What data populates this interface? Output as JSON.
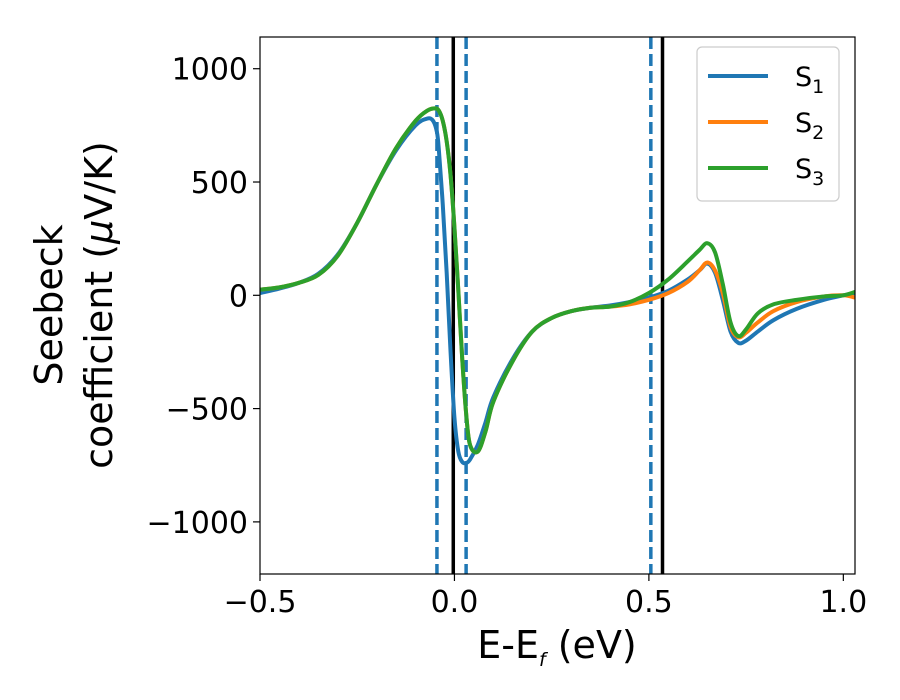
{
  "chart_data": {
    "type": "line",
    "title": "",
    "xlabel": {
      "prefix": "E-E",
      "sub": "f",
      "suffix": " (eV)"
    },
    "ylabel": {
      "line1": "Seebeck",
      "line2": "coefficient  (",
      "mu": "μ",
      "line2_suffix": "V/K)"
    },
    "xlim": [
      -0.5,
      1.03
    ],
    "ylim": [
      -1230,
      1140
    ],
    "xticks": [
      {
        "value": -0.5,
        "label": "−0.5"
      },
      {
        "value": 0.0,
        "label": "0.0"
      },
      {
        "value": 0.5,
        "label": "0.5"
      },
      {
        "value": 1.0,
        "label": "1.0"
      }
    ],
    "yticks": [
      {
        "value": 1000,
        "label": "1000"
      },
      {
        "value": 500,
        "label": "500"
      },
      {
        "value": 0,
        "label": "0"
      },
      {
        "value": -500,
        "label": "−500"
      },
      {
        "value": -1000,
        "label": "−1000"
      }
    ],
    "grid": false,
    "legend_position": "top-right",
    "series": [
      {
        "name": "S1",
        "base": "S",
        "sub": "1",
        "color": "#1f77b4",
        "x": [
          -0.5,
          -0.45,
          -0.4,
          -0.35,
          -0.3,
          -0.25,
          -0.2,
          -0.15,
          -0.1,
          -0.07,
          -0.055,
          -0.045,
          -0.04,
          -0.03,
          -0.02,
          -0.01,
          0.0,
          0.01,
          0.02,
          0.03,
          0.04,
          0.06,
          0.08,
          0.1,
          0.15,
          0.2,
          0.25,
          0.3,
          0.35,
          0.4,
          0.45,
          0.5,
          0.55,
          0.6,
          0.63,
          0.65,
          0.67,
          0.69,
          0.71,
          0.73,
          0.75,
          0.78,
          0.82,
          0.88,
          0.95,
          1.0,
          1.03
        ],
        "y": [
          10,
          30,
          55,
          95,
          180,
          320,
          490,
          640,
          750,
          780,
          770,
          720,
          640,
          400,
          100,
          -250,
          -540,
          -690,
          -735,
          -740,
          -725,
          -660,
          -560,
          -450,
          -280,
          -160,
          -100,
          -70,
          -55,
          -45,
          -30,
          -10,
          20,
          70,
          110,
          140,
          100,
          -20,
          -160,
          -210,
          -200,
          -160,
          -110,
          -60,
          -20,
          0,
          10
        ]
      },
      {
        "name": "S2",
        "base": "S",
        "sub": "2",
        "color": "#ff7f0e",
        "x": [
          -0.5,
          -0.45,
          -0.4,
          -0.35,
          -0.3,
          -0.25,
          -0.2,
          -0.15,
          -0.1,
          -0.07,
          -0.05,
          -0.04,
          -0.03,
          -0.02,
          -0.01,
          0.0,
          0.01,
          0.02,
          0.03,
          0.04,
          0.06,
          0.08,
          0.1,
          0.15,
          0.2,
          0.25,
          0.3,
          0.35,
          0.4,
          0.45,
          0.5,
          0.55,
          0.6,
          0.63,
          0.65,
          0.67,
          0.69,
          0.71,
          0.73,
          0.75,
          0.78,
          0.82,
          0.88,
          0.95,
          1.0,
          1.03
        ],
        "y": [
          25,
          35,
          55,
          90,
          175,
          320,
          490,
          650,
          770,
          815,
          825,
          815,
          770,
          680,
          530,
          300,
          20,
          -280,
          -520,
          -660,
          -690,
          -600,
          -470,
          -290,
          -160,
          -100,
          -70,
          -55,
          -50,
          -40,
          -20,
          10,
          60,
          110,
          145,
          110,
          10,
          -140,
          -185,
          -165,
          -120,
          -70,
          -30,
          -5,
          0,
          -10
        ]
      },
      {
        "name": "S3",
        "base": "S",
        "sub": "3",
        "color": "#2ca02c",
        "x": [
          -0.5,
          -0.45,
          -0.4,
          -0.35,
          -0.3,
          -0.25,
          -0.2,
          -0.15,
          -0.1,
          -0.07,
          -0.05,
          -0.04,
          -0.03,
          -0.02,
          -0.01,
          0.0,
          0.01,
          0.02,
          0.03,
          0.04,
          0.06,
          0.08,
          0.1,
          0.15,
          0.2,
          0.25,
          0.3,
          0.35,
          0.4,
          0.45,
          0.5,
          0.55,
          0.6,
          0.63,
          0.65,
          0.67,
          0.69,
          0.71,
          0.73,
          0.75,
          0.78,
          0.82,
          0.88,
          0.95,
          1.0,
          1.03
        ],
        "y": [
          25,
          35,
          55,
          90,
          175,
          320,
          490,
          650,
          770,
          815,
          825,
          815,
          770,
          680,
          530,
          300,
          20,
          -280,
          -520,
          -660,
          -690,
          -600,
          -470,
          -290,
          -160,
          -100,
          -70,
          -55,
          -50,
          -30,
          10,
          70,
          150,
          200,
          230,
          190,
          50,
          -120,
          -180,
          -150,
          -80,
          -40,
          -20,
          -5,
          0,
          15
        ]
      }
    ],
    "vertical_lines": [
      {
        "name": "band-edge-dashed-1",
        "x": -0.045,
        "style": "dashed",
        "color": "#1f77b4"
      },
      {
        "name": "band-edge-solid-1",
        "x": -0.003,
        "style": "solid",
        "color": "#000000"
      },
      {
        "name": "band-edge-dashed-2",
        "x": 0.03,
        "style": "dashed",
        "color": "#1f77b4"
      },
      {
        "name": "band-edge-dashed-3",
        "x": 0.505,
        "style": "dashed",
        "color": "#1f77b4"
      },
      {
        "name": "band-edge-solid-2",
        "x": 0.535,
        "style": "solid",
        "color": "#000000"
      }
    ]
  }
}
